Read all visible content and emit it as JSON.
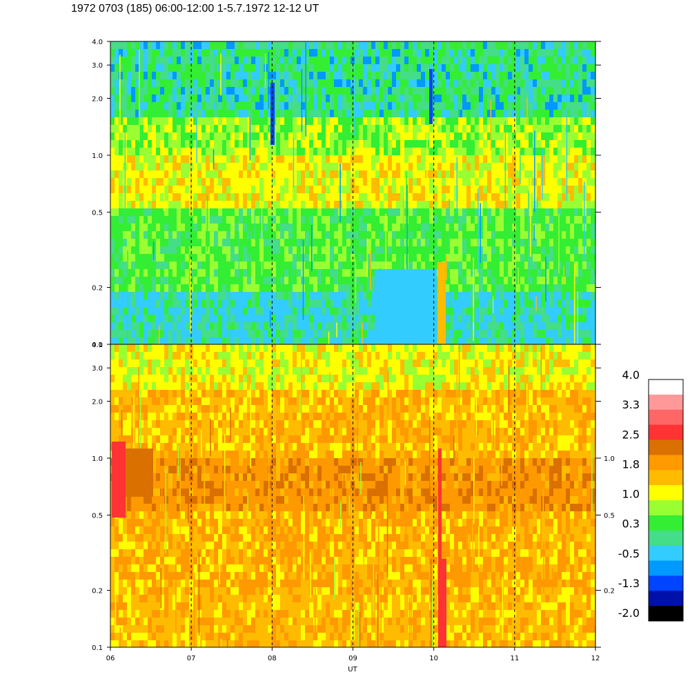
{
  "title": "1972 0703 (185) 06:00-12:00 1-5.7.1972  12-12 UT",
  "chart_data": [
    {
      "type": "heatmap",
      "panel": "top",
      "x_range": [
        6,
        12
      ],
      "y_scale": "log",
      "y_range": [
        0.1,
        4.0
      ],
      "y_tick_labels": [
        "4.0",
        "3.0",
        "2.0",
        "1.0",
        "0.5",
        "0.2",
        "0.1"
      ],
      "y_tick_values": [
        4.0,
        3.0,
        2.0,
        1.0,
        0.5,
        0.2,
        0.1
      ],
      "dominant_levels": "green-cyan (about 0.3 to -0.5), with yellow/orange band near 0.5-1.0",
      "dashed_hour_lines": [
        7,
        8,
        9,
        10,
        11
      ]
    },
    {
      "type": "heatmap",
      "panel": "bottom",
      "x_range": [
        6,
        12
      ],
      "y_scale": "log",
      "y_range": [
        0.1,
        4.0
      ],
      "y_tick_labels": [
        "4.0",
        "3.0",
        "2.0",
        "1.0",
        "0.5",
        "0.2",
        "0.1"
      ],
      "y_tick_values": [
        4.0,
        3.0,
        2.0,
        1.0,
        0.5,
        0.2,
        0.1
      ],
      "right_tick_labels": [
        "1.0",
        "0.5",
        "0.2"
      ],
      "right_tick_values": [
        1.0,
        0.5,
        0.2
      ],
      "dominant_levels": "orange-yellow (about 1.0 to 1.8), darker band near 0.5",
      "dashed_hour_lines": [
        7,
        8,
        9,
        10,
        11
      ]
    }
  ],
  "x_axis": {
    "label": "UT",
    "tick_labels": [
      "06",
      "07",
      "08",
      "09",
      "10",
      "11",
      "12"
    ],
    "tick_values": [
      6,
      7,
      8,
      9,
      10,
      11,
      12
    ]
  },
  "colorbar": {
    "labels": [
      "4.0",
      "3.3",
      "2.5",
      "1.8",
      "1.0",
      "0.3",
      "-0.5",
      "-1.3",
      "-2.0"
    ],
    "colors_top_to_bottom": [
      "#ffffff",
      "#ff9999",
      "#ff6666",
      "#ff3333",
      "#d97000",
      "#ff9900",
      "#ffbb00",
      "#ffff00",
      "#99ff33",
      "#33ee33",
      "#44dd88",
      "#33ccff",
      "#0099ff",
      "#0044ff",
      "#0011aa",
      "#000000"
    ]
  }
}
